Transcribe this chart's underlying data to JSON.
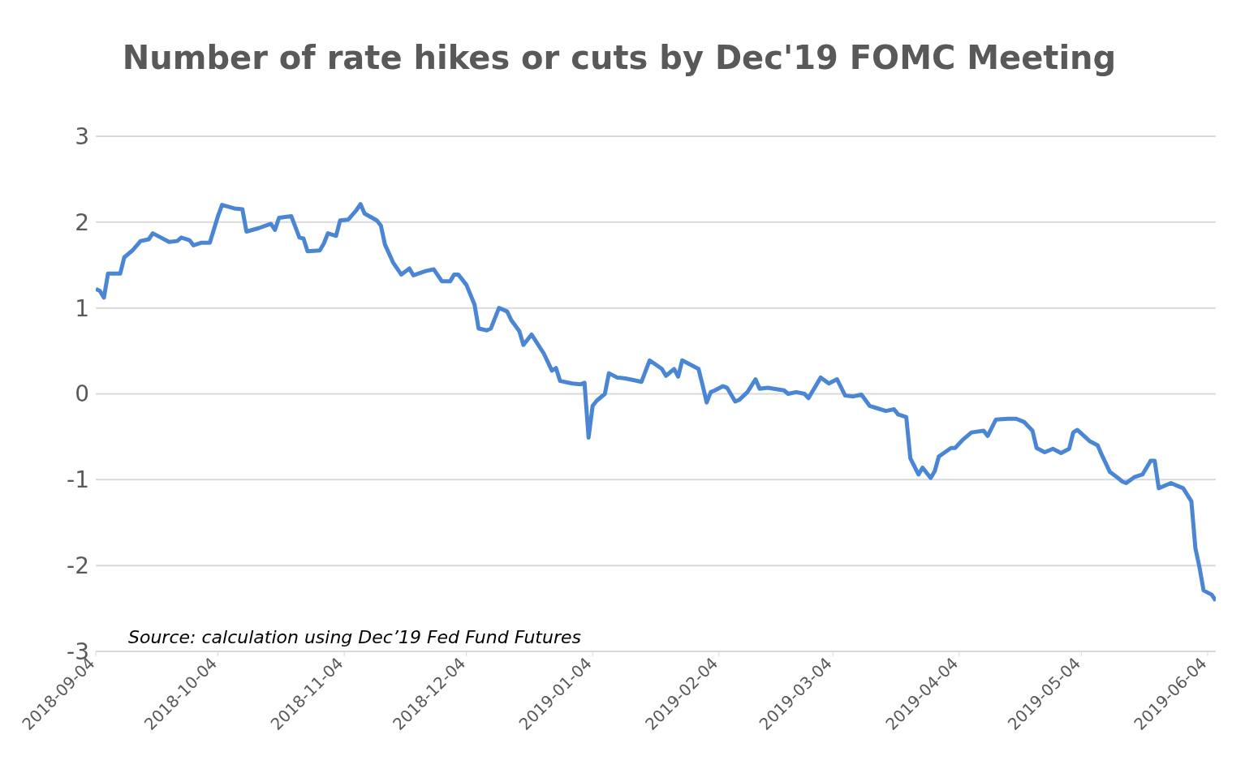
{
  "chart_data": {
    "type": "line",
    "title": "Number of rate hikes or cuts by Dec'19 FOMC Meeting",
    "annotations": [
      "Source: calculation using Dec’19 Fed Fund Futures"
    ],
    "x": [
      "2018-09-04",
      "2018-09-05",
      "2018-09-06",
      "2018-09-07",
      "2018-09-10",
      "2018-09-11",
      "2018-09-13",
      "2018-09-15",
      "2018-09-17",
      "2018-09-18",
      "2018-09-20",
      "2018-09-22",
      "2018-09-24",
      "2018-09-25",
      "2018-09-27",
      "2018-09-28",
      "2018-09-30",
      "2018-10-02",
      "2018-10-04",
      "2018-10-05",
      "2018-10-08",
      "2018-10-10",
      "2018-10-11",
      "2018-10-14",
      "2018-10-17",
      "2018-10-18",
      "2018-10-19",
      "2018-10-22",
      "2018-10-24",
      "2018-10-25",
      "2018-10-26",
      "2018-10-29",
      "2018-10-30",
      "2018-10-31",
      "2018-11-02",
      "2018-11-03",
      "2018-11-05",
      "2018-11-07",
      "2018-11-08",
      "2018-11-09",
      "2018-11-12",
      "2018-11-13",
      "2018-11-14",
      "2018-11-16",
      "2018-11-18",
      "2018-11-20",
      "2018-11-21",
      "2018-11-24",
      "2018-11-26",
      "2018-11-28",
      "2018-11-30",
      "2018-12-01",
      "2018-12-02",
      "2018-12-04",
      "2018-12-06",
      "2018-12-07",
      "2018-12-09",
      "2018-12-10",
      "2018-12-12",
      "2018-12-14",
      "2018-12-15",
      "2018-12-17",
      "2018-12-18",
      "2018-12-20",
      "2018-12-23",
      "2018-12-25",
      "2018-12-26",
      "2018-12-27",
      "2018-12-30",
      "2019-01-01",
      "2019-01-02",
      "2019-01-03",
      "2019-01-04",
      "2019-01-05",
      "2019-01-07",
      "2019-01-08",
      "2019-01-10",
      "2019-01-12",
      "2019-01-14",
      "2019-01-16",
      "2019-01-18",
      "2019-01-21",
      "2019-01-22",
      "2019-01-24",
      "2019-01-25",
      "2019-01-26",
      "2019-01-28",
      "2019-01-30",
      "2019-01-31",
      "2019-02-01",
      "2019-02-02",
      "2019-02-03",
      "2019-02-05",
      "2019-02-06",
      "2019-02-08",
      "2019-02-09",
      "2019-02-11",
      "2019-02-13",
      "2019-02-14",
      "2019-02-16",
      "2019-02-20",
      "2019-02-21",
      "2019-02-23",
      "2019-02-25",
      "2019-02-26",
      "2019-03-01",
      "2019-03-03",
      "2019-03-05",
      "2019-03-07",
      "2019-03-09",
      "2019-03-11",
      "2019-03-13",
      "2019-03-15",
      "2019-03-17",
      "2019-03-19",
      "2019-03-20",
      "2019-03-22",
      "2019-03-23",
      "2019-03-25",
      "2019-03-26",
      "2019-03-28",
      "2019-03-29",
      "2019-03-30",
      "2019-04-02",
      "2019-04-03",
      "2019-04-05",
      "2019-04-07",
      "2019-04-10",
      "2019-04-11",
      "2019-04-13",
      "2019-04-16",
      "2019-04-18",
      "2019-04-20",
      "2019-04-22",
      "2019-04-23",
      "2019-04-25",
      "2019-04-27",
      "2019-04-29",
      "2019-05-01",
      "2019-05-02",
      "2019-05-03",
      "2019-05-06",
      "2019-05-08",
      "2019-05-09",
      "2019-05-11",
      "2019-05-13",
      "2019-05-14",
      "2019-05-15",
      "2019-05-17",
      "2019-05-19",
      "2019-05-21",
      "2019-05-22",
      "2019-05-23",
      "2019-05-24",
      "2019-05-26",
      "2019-05-27",
      "2019-05-29",
      "2019-05-31",
      "2019-06-01",
      "2019-06-02",
      "2019-06-03",
      "2019-06-05",
      "2019-06-06"
    ],
    "series": [
      {
        "color": "#4a86d4",
        "values": [
          1.22,
          1.2,
          1.12,
          1.4,
          1.4,
          1.59,
          1.67,
          1.78,
          1.8,
          1.87,
          1.82,
          1.77,
          1.78,
          1.82,
          1.79,
          1.73,
          1.76,
          1.76,
          2.07,
          2.2,
          2.16,
          2.15,
          1.89,
          1.93,
          1.98,
          1.91,
          2.05,
          2.07,
          1.82,
          1.81,
          1.66,
          1.67,
          1.75,
          1.87,
          1.84,
          2.02,
          2.03,
          2.14,
          2.21,
          2.1,
          2.02,
          1.96,
          1.74,
          1.53,
          1.39,
          1.46,
          1.38,
          1.43,
          1.45,
          1.31,
          1.31,
          1.39,
          1.39,
          1.27,
          1.04,
          0.76,
          0.74,
          0.76,
          1.0,
          0.96,
          0.86,
          0.73,
          0.57,
          0.69,
          0.47,
          0.27,
          0.3,
          0.15,
          0.12,
          0.11,
          0.13,
          -0.51,
          -0.14,
          -0.08,
          0,
          0.24,
          0.19,
          0.18,
          0.16,
          0.14,
          0.39,
          0.29,
          0.21,
          0.29,
          0.2,
          0.39,
          0.34,
          0.29,
          0.1,
          -0.1,
          0.02,
          0.04,
          0.09,
          0.07,
          -0.09,
          -0.07,
          0.02,
          0.17,
          0.06,
          0.07,
          0.04,
          0,
          0.02,
          0,
          -0.05,
          0.19,
          0.12,
          0.17,
          -0.02,
          -0.03,
          -0.01,
          -0.14,
          -0.17,
          -0.2,
          -0.18,
          -0.24,
          -0.27,
          -0.75,
          -0.94,
          -0.86,
          -0.98,
          -0.9,
          -0.73,
          -0.63,
          -0.63,
          -0.53,
          -0.45,
          -0.43,
          -0.49,
          -0.3,
          -0.29,
          -0.29,
          -0.33,
          -0.43,
          -0.63,
          -0.68,
          -0.64,
          -0.69,
          -0.64,
          -0.45,
          -0.42,
          -0.55,
          -0.6,
          -0.71,
          -0.91,
          -0.98,
          -1.02,
          -1.04,
          -0.97,
          -0.94,
          -0.78,
          -0.78,
          -1.1,
          -1.08,
          -1.04,
          -1.06,
          -1.1,
          -1.25,
          -1.8,
          -2.02,
          -2.29,
          -2.34,
          -2.41
        ]
      }
    ],
    "xlim": [
      "2018-09-04",
      "2019-06-06"
    ],
    "xticks": [
      "2018-09-04",
      "2018-10-04",
      "2018-11-04",
      "2018-12-04",
      "2019-01-04",
      "2019-02-04",
      "2019-03-04",
      "2019-04-04",
      "2019-05-04",
      "2019-06-04"
    ],
    "ylim": [
      -3,
      3
    ],
    "yticks": [
      -3,
      -2,
      -1,
      0,
      1,
      2,
      3
    ],
    "grid": "y",
    "legend": false,
    "marker": "none",
    "line_style": "solid"
  }
}
